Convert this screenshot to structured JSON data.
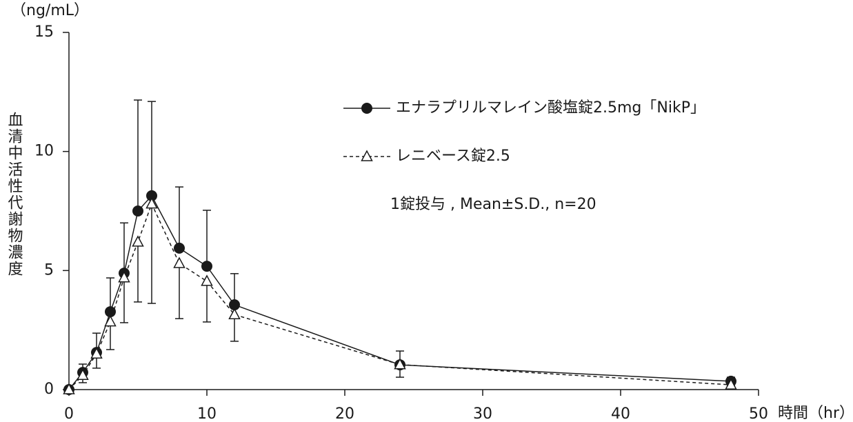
{
  "chart_data": {
    "type": "line",
    "y_label": "血清中活性代謝物濃度",
    "y_unit": "（ng/mL）",
    "x_label": "時間（hr）",
    "annotation": "1錠投与 , Mean±S.D., n=20",
    "x": [
      0,
      1,
      2,
      3,
      4,
      5,
      6,
      8,
      10,
      12,
      24,
      48
    ],
    "series": [
      {
        "name": "エナラプリルマレイン酸塩錠2.5mg「NikP」",
        "color": "#1a1a1a",
        "dash": "solid",
        "marker": "circle",
        "values": [
          0,
          0.72,
          1.56,
          3.27,
          4.89,
          7.5,
          8.14,
          5.94,
          5.18,
          3.56,
          1.04,
          0.35
        ],
        "errors": [
          0,
          0.35,
          0.81,
          1.42,
          2.11,
          4.66,
          3.96,
          2.57,
          2.35,
          1.31,
          0.58,
          0.17
        ]
      },
      {
        "name": "レニベース錠2.5",
        "color": "#1a1a1a",
        "dash": "dashed",
        "marker": "triangle",
        "values": [
          0,
          0.6,
          1.5,
          2.85,
          4.7,
          6.2,
          7.8,
          5.3,
          4.55,
          3.15,
          1.05,
          0.2
        ],
        "errors": [
          0,
          0.31,
          0.6,
          1.17,
          1.89,
          2.52,
          4.18,
          2.32,
          1.71,
          1.12,
          0.53,
          0.03
        ]
      }
    ],
    "xlim": [
      0,
      50
    ],
    "xticks": [
      0,
      10,
      20,
      30,
      40,
      50
    ],
    "ylim": [
      0,
      15
    ],
    "yticks": [
      0,
      5,
      10,
      15
    ]
  }
}
